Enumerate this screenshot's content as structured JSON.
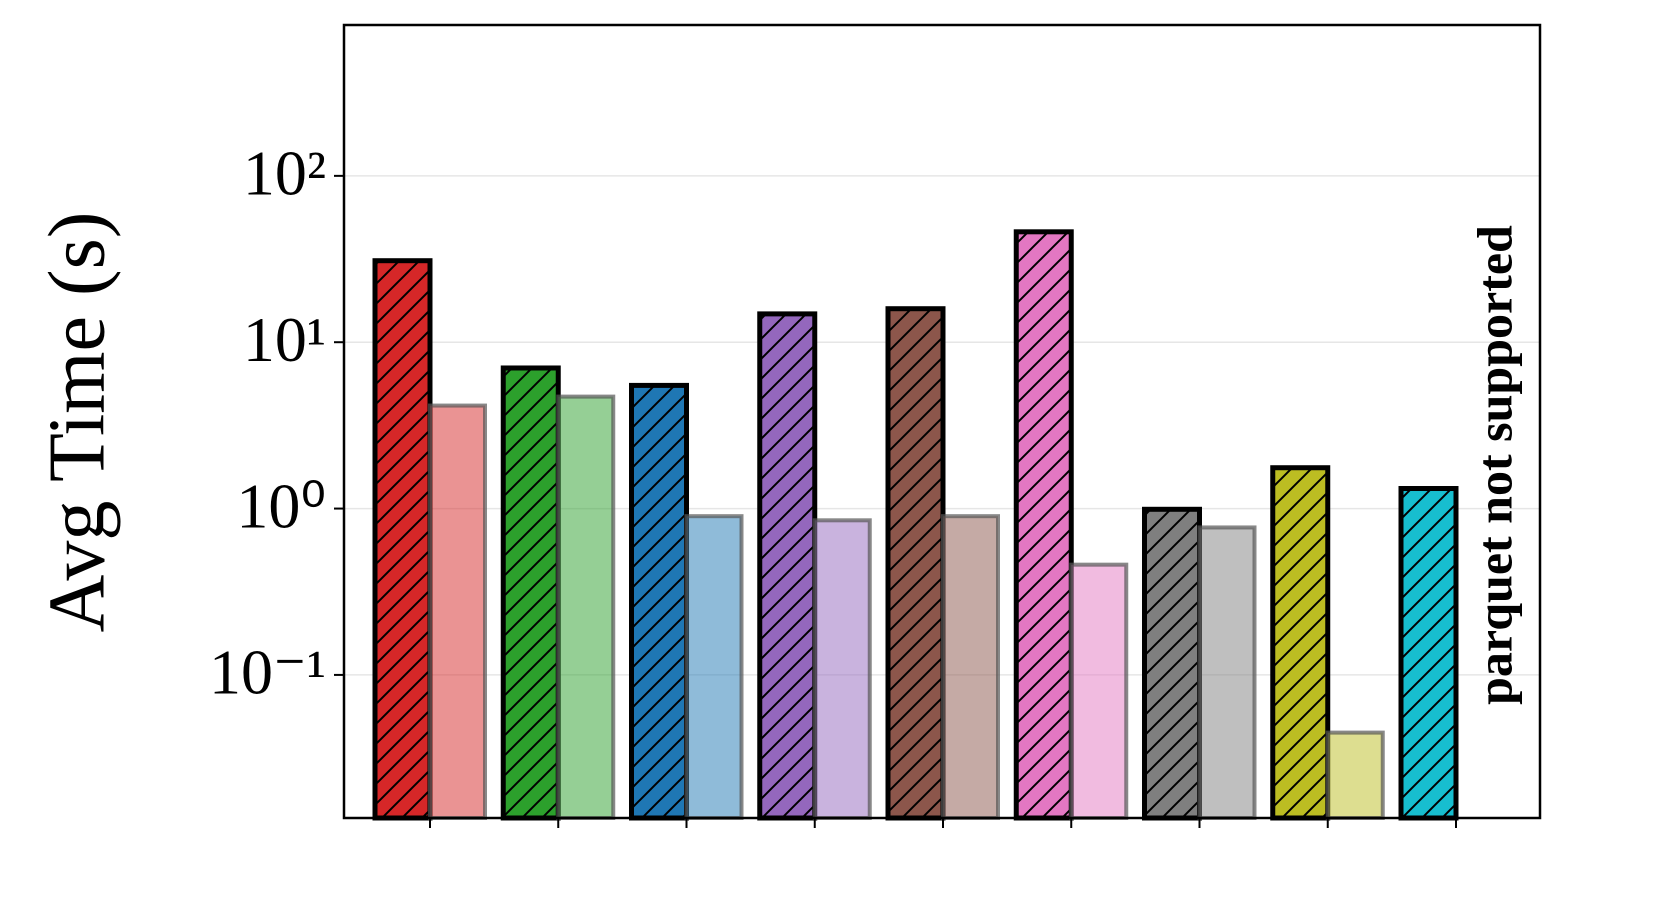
{
  "chart_data": {
    "type": "bar",
    "y_label": "Avg Time (s)",
    "log_y": true,
    "grid": true,
    "annotation": "parquet not supported",
    "annotation_color": "#ff0000",
    "categories": [
      null,
      null,
      null,
      null,
      null,
      null,
      null,
      null,
      null
    ],
    "ylim": [
      0.0138,
      807
    ],
    "yticks": [
      {
        "value": 0.1,
        "label": "10⁻¹"
      },
      {
        "value": 1,
        "label": "10⁰"
      },
      {
        "value": 10,
        "label": "10¹"
      },
      {
        "value": 100,
        "label": "10²"
      }
    ],
    "series": [
      {
        "hatch": true,
        "opacity": 1,
        "edge": "#000000",
        "colors": [
          "#d62728",
          "#2ca02c",
          "#1f77b4",
          "#9467bd",
          "#8c564b",
          "#e377c2",
          "#7f7f7f",
          "#bcbd22",
          "#17becf"
        ],
        "values": [
          30.9,
          7.0,
          5.5,
          14.8,
          15.9,
          46.1,
          0.99,
          1.76,
          1.32
        ]
      },
      {
        "hatch": false,
        "opacity": 0.5,
        "edge": "#555555",
        "colors": [
          "#d62728",
          "#2ca02c",
          "#1f77b4",
          "#9467bd",
          "#8c564b",
          "#e377c2",
          "#7f7f7f",
          "#bcbd22",
          "#17becf"
        ],
        "values": [
          4.16,
          4.71,
          0.9,
          0.85,
          0.9,
          0.46,
          0.77,
          0.045,
          null
        ]
      }
    ]
  }
}
